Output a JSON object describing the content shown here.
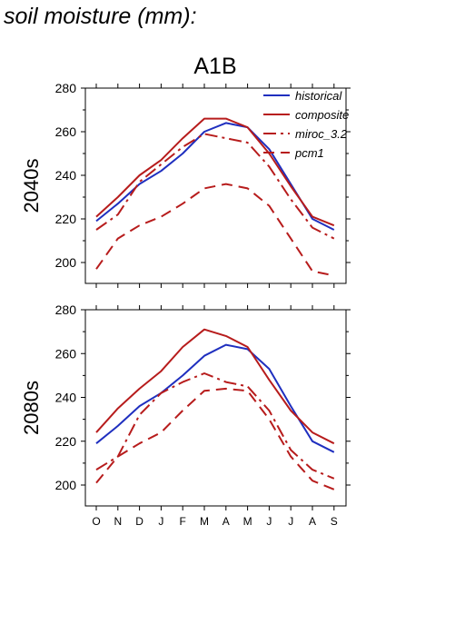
{
  "heading": "soil moisture (mm):",
  "figure_title": "A1B",
  "months": [
    "O",
    "N",
    "D",
    "J",
    "F",
    "M",
    "A",
    "M",
    "J",
    "J",
    "A",
    "S"
  ],
  "colors": {
    "historical": "#1f2fbf",
    "scenario": "#b71c1c",
    "frame": "#000000"
  },
  "legend": [
    {
      "name": "historical",
      "color": "#1f2fbf",
      "dash": "solid"
    },
    {
      "name": "composite",
      "color": "#b71c1c",
      "dash": "solid"
    },
    {
      "name": "miroc_3.2",
      "color": "#b71c1c",
      "dash": "dashdot"
    },
    {
      "name": "pcm1",
      "color": "#b71c1c",
      "dash": "dashed"
    }
  ],
  "chart_data": [
    {
      "type": "line",
      "ylabel": "2040s",
      "ylim": [
        190,
        280
      ],
      "yticks": [
        200,
        220,
        240,
        260,
        280
      ],
      "categories": [
        "O",
        "N",
        "D",
        "J",
        "F",
        "M",
        "A",
        "M",
        "J",
        "J",
        "A",
        "S"
      ],
      "legend_position": "top-right",
      "series": [
        {
          "name": "historical",
          "color": "#1f2fbf",
          "dash": "solid",
          "values": [
            219,
            227,
            236,
            242,
            250,
            260,
            264,
            262,
            252,
            236,
            220,
            215
          ]
        },
        {
          "name": "composite",
          "color": "#b71c1c",
          "dash": "solid",
          "values": [
            221,
            230,
            240,
            247,
            257,
            266,
            266,
            262,
            250,
            235,
            221,
            217
          ]
        },
        {
          "name": "miroc_3.2",
          "color": "#b71c1c",
          "dash": "dashdot",
          "values": [
            215,
            222,
            237,
            245,
            253,
            259,
            257,
            255,
            244,
            229,
            216,
            211
          ]
        },
        {
          "name": "pcm1",
          "color": "#b71c1c",
          "dash": "dashed",
          "values": [
            197,
            211,
            217,
            221,
            227,
            234,
            236,
            234,
            226,
            211,
            196,
            194
          ]
        }
      ]
    },
    {
      "type": "line",
      "ylabel": "2080s",
      "ylim": [
        190,
        280
      ],
      "yticks": [
        200,
        220,
        240,
        260,
        280
      ],
      "categories": [
        "O",
        "N",
        "D",
        "J",
        "F",
        "M",
        "A",
        "M",
        "J",
        "J",
        "A",
        "S"
      ],
      "series": [
        {
          "name": "historical",
          "color": "#1f2fbf",
          "dash": "solid",
          "values": [
            219,
            227,
            236,
            242,
            250,
            259,
            264,
            262,
            253,
            236,
            220,
            215
          ]
        },
        {
          "name": "composite",
          "color": "#b71c1c",
          "dash": "solid",
          "values": [
            224,
            235,
            244,
            252,
            263,
            271,
            268,
            263,
            248,
            234,
            224,
            219
          ]
        },
        {
          "name": "miroc_3.2",
          "color": "#b71c1c",
          "dash": "dashdot",
          "values": [
            207,
            213,
            232,
            242,
            247,
            251,
            247,
            245,
            234,
            216,
            207,
            203
          ]
        },
        {
          "name": "pcm1",
          "color": "#b71c1c",
          "dash": "dashed",
          "values": [
            201,
            213,
            219,
            224,
            234,
            243,
            244,
            243,
            230,
            213,
            202,
            198
          ]
        }
      ]
    }
  ]
}
